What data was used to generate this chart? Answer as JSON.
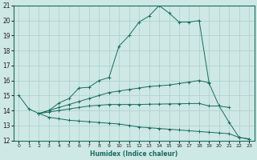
{
  "xlabel": "Humidex (Indice chaleur)",
  "bg_color": "#cde8e5",
  "line_color": "#1a6b5e",
  "grid_color": "#aacfcc",
  "xlim": [
    -0.5,
    23.5
  ],
  "ylim": [
    12,
    21
  ],
  "xticks": [
    0,
    1,
    2,
    3,
    4,
    5,
    6,
    7,
    8,
    9,
    10,
    11,
    12,
    13,
    14,
    15,
    16,
    17,
    18,
    19,
    20,
    21,
    22,
    23
  ],
  "yticks": [
    12,
    13,
    14,
    15,
    16,
    17,
    18,
    19,
    20,
    21
  ],
  "lines": [
    {
      "x": [
        0,
        1,
        2,
        3,
        4,
        5,
        6,
        7,
        8,
        9,
        10,
        11,
        12,
        13,
        14,
        15,
        16,
        17,
        18,
        19,
        20,
        21,
        22,
        23
      ],
      "y": [
        15.0,
        14.1,
        13.8,
        14.0,
        14.5,
        14.8,
        15.5,
        15.55,
        16.0,
        16.2,
        18.3,
        19.0,
        19.9,
        20.3,
        21.0,
        20.5,
        19.9,
        19.9,
        20.0,
        15.8,
        14.3,
        13.2,
        12.2,
        12.1
      ]
    },
    {
      "x": [
        2,
        3,
        4,
        5,
        6,
        7,
        8,
        9,
        10,
        11,
        12,
        13,
        14,
        15,
        16,
        17,
        18,
        19
      ],
      "y": [
        13.8,
        14.0,
        14.2,
        14.4,
        14.6,
        14.8,
        15.0,
        15.2,
        15.3,
        15.4,
        15.5,
        15.6,
        15.65,
        15.7,
        15.8,
        15.9,
        16.0,
        15.85
      ]
    },
    {
      "x": [
        2,
        3,
        4,
        5,
        6,
        7,
        8,
        9,
        10,
        11,
        12,
        13,
        14,
        15,
        16,
        17,
        18,
        19,
        20,
        21
      ],
      "y": [
        13.8,
        13.9,
        14.0,
        14.1,
        14.2,
        14.3,
        14.35,
        14.4,
        14.4,
        14.4,
        14.4,
        14.42,
        14.43,
        14.44,
        14.45,
        14.46,
        14.47,
        14.3,
        14.3,
        14.2
      ]
    },
    {
      "x": [
        2,
        3,
        4,
        5,
        6,
        7,
        8,
        9,
        10,
        11,
        12,
        13,
        14,
        15,
        16,
        17,
        18,
        19,
        20,
        21,
        22,
        23
      ],
      "y": [
        13.8,
        13.55,
        13.45,
        13.35,
        13.3,
        13.25,
        13.2,
        13.15,
        13.1,
        13.0,
        12.9,
        12.85,
        12.8,
        12.75,
        12.7,
        12.65,
        12.6,
        12.55,
        12.5,
        12.45,
        12.2,
        12.1
      ]
    }
  ]
}
